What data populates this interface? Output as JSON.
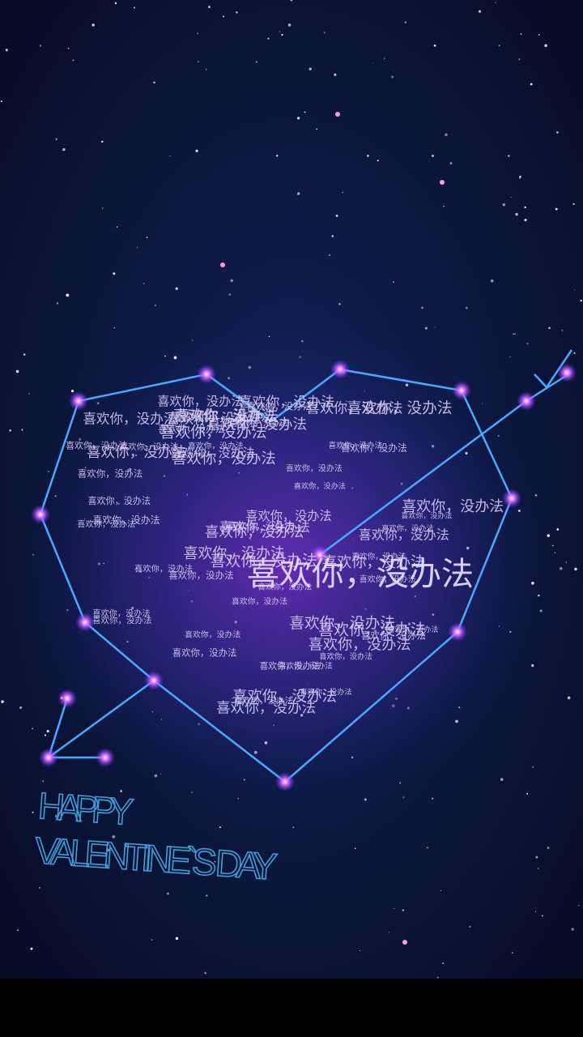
{
  "floating_text": [
    "喜欢你，没办法",
    "喜欢你，没办法",
    "喜欢你，没办法",
    "喜欢你，没办法",
    "喜欢你，没办法",
    "喜欢你，没办法",
    "喜欢你，没办法",
    "喜欢你，没办法",
    "喜欢你，没办法",
    "喜欢你，没办法",
    "喜欢你，没办法",
    "喜欢你，没办法",
    "喜欢你，没办法",
    "喜欢你，没办法",
    "喜欢你，没办法",
    "喜欢你，没办法",
    "喜欢你，没办法",
    "喜欢你，没办法",
    "喜欢你，没办法",
    "喜欢你，没办法",
    "喜欢你，没办法",
    "喜欢你，没办法",
    "喜欢你，没办法",
    "喜欢你，没办法",
    "喜欢你，没办法",
    "喜欢你，没办法",
    "喜欢你，没办法",
    "喜欢你，没办法",
    "喜欢你，没办法",
    "喜欢你，没办法",
    "喜欢你，没办法",
    "喜欢你，没办法",
    "喜欢你，没办法",
    "喜欢你，没办法",
    "喜欢你，没办法",
    "喜欢你，没办法",
    "喜欢你，没办法",
    "喜欢你，没办法",
    "喜欢你，没办法",
    "喜欢你，没办法",
    "喜欢你，没办法",
    "喜欢你，没办法",
    "喜欢你，没办法",
    "喜欢你，没办法",
    "喜欢你，没办法",
    "喜欢你，没办法",
    "喜欢你，没办法",
    "喜欢你，没办法",
    "喜欢你，没办法",
    "喜欢你，没办法",
    "喜欢你，没办法",
    "喜欢你，没办法",
    "喜欢你，没办法",
    "喜欢你，没办法",
    "喜欢你，没办法",
    "喜欢你，没办法",
    "喜欢你，没办法",
    "喜欢你，没办法",
    "喜欢你，没办法",
    "喜欢你，没办法"
  ],
  "center_text": "喜欢你，没办法",
  "greeting": {
    "line1": "HAPPY",
    "line2": "VALENTINE`S DAY"
  }
}
